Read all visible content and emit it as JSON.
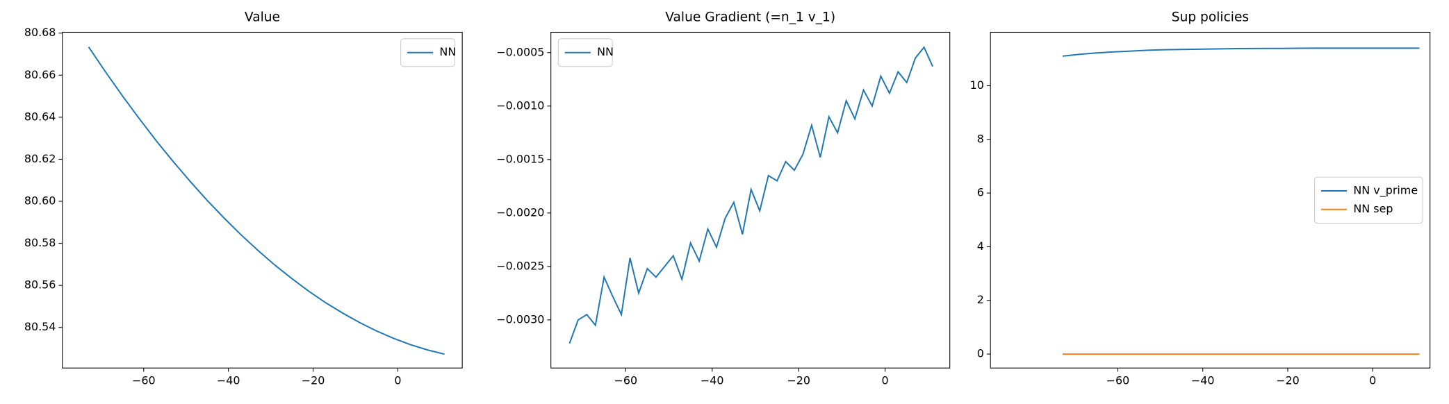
{
  "chart_data": [
    {
      "type": "line",
      "title": "Value",
      "x": [
        -73,
        -69,
        -65,
        -61,
        -57,
        -53,
        -49,
        -45,
        -41,
        -37,
        -33,
        -29,
        -25,
        -21,
        -17,
        -13,
        -9,
        -5,
        -1,
        3,
        7,
        11
      ],
      "series": [
        {
          "name": "NN",
          "color": "#1f77b4",
          "values": [
            80.6734,
            80.6615,
            80.6501,
            80.6392,
            80.6287,
            80.6188,
            80.6094,
            80.6004,
            80.592,
            80.584,
            80.5766,
            80.5696,
            80.5632,
            80.5572,
            80.5517,
            80.5468,
            80.5423,
            80.5383,
            80.5348,
            80.5318,
            80.5293,
            80.5273
          ]
        }
      ],
      "xlim": [
        -79.2,
        15.2
      ],
      "xticks": [
        {
          "value": -60,
          "label": "−60"
        },
        {
          "value": -40,
          "label": "−40"
        },
        {
          "value": -20,
          "label": "−20"
        },
        0
      ],
      "ylim": [
        80.5207,
        80.6804
      ],
      "yticks": [
        80.54,
        80.56,
        80.58,
        {
          "value": 80.6,
          "label": "80.60"
        },
        80.62,
        80.64,
        80.66,
        80.68
      ],
      "legend": "upper right"
    },
    {
      "type": "line",
      "title": "Value Gradient (=n_1 v_1)",
      "x": [
        -73,
        -71,
        -69,
        -67,
        -65,
        -63,
        -61,
        -59,
        -57,
        -55,
        -53,
        -51,
        -49,
        -47,
        -45,
        -43,
        -41,
        -39,
        -37,
        -35,
        -33,
        -31,
        -29,
        -27,
        -25,
        -23,
        -21,
        -19,
        -17,
        -15,
        -13,
        -11,
        -9,
        -7,
        -5,
        -3,
        -1,
        1,
        3,
        5,
        7,
        9,
        11
      ],
      "series": [
        {
          "name": "NN",
          "color": "#1f77b4",
          "values": [
            -0.00322,
            -0.003,
            -0.00295,
            -0.00305,
            -0.0026,
            -0.00278,
            -0.00295,
            -0.00242,
            -0.00275,
            -0.00252,
            -0.0026,
            -0.0025,
            -0.0024,
            -0.00262,
            -0.00228,
            -0.00245,
            -0.00215,
            -0.00232,
            -0.00205,
            -0.0019,
            -0.0022,
            -0.00178,
            -0.00198,
            -0.00165,
            -0.0017,
            -0.00152,
            -0.0016,
            -0.00145,
            -0.00118,
            -0.00148,
            -0.0011,
            -0.00125,
            -0.00095,
            -0.00112,
            -0.00085,
            -0.001,
            -0.00072,
            -0.00088,
            -0.00068,
            -0.00078,
            -0.00055,
            -0.00045,
            -0.00063
          ]
        }
      ],
      "xlim": [
        -77.3,
        14.96
      ],
      "xticks": [
        {
          "value": -60,
          "label": "−60"
        },
        {
          "value": -40,
          "label": "−40"
        },
        {
          "value": -20,
          "label": "−20"
        },
        0
      ],
      "ylim": [
        -0.00345,
        -0.00031
      ],
      "yticks": [
        {
          "value": -0.003,
          "label": "−0.0030"
        },
        {
          "value": -0.0025,
          "label": "−0.0025"
        },
        {
          "value": -0.002,
          "label": "−0.0020"
        },
        {
          "value": -0.0015,
          "label": "−0.0015"
        },
        {
          "value": -0.001,
          "label": "−0.0010"
        },
        {
          "value": -0.0005,
          "label": "−0.0005"
        }
      ],
      "legend": "upper left"
    },
    {
      "type": "line",
      "title": "Sup policies",
      "x": [
        -73,
        -69,
        -65,
        -61,
        -57,
        -53,
        -49,
        -45,
        -41,
        -37,
        -33,
        -29,
        -25,
        -21,
        -17,
        -13,
        -9,
        -5,
        -1,
        3,
        7,
        11
      ],
      "series": [
        {
          "name": "NN v_prime",
          "color": "#1f77b4",
          "values": [
            11.1,
            11.17,
            11.22,
            11.26,
            11.29,
            11.32,
            11.34,
            11.35,
            11.36,
            11.37,
            11.38,
            11.385,
            11.39,
            11.39,
            11.395,
            11.4,
            11.4,
            11.4,
            11.4,
            11.4,
            11.4,
            11.4
          ]
        },
        {
          "name": "NN sep",
          "color": "#ff7f0e",
          "values": [
            0,
            0,
            0,
            0,
            0,
            0,
            0,
            0,
            0,
            0,
            0,
            0,
            0,
            0,
            0,
            0,
            0,
            0,
            0,
            0,
            0,
            0
          ]
        }
      ],
      "xlim": [
        -90,
        13.5
      ],
      "xticks": [
        {
          "value": -60,
          "label": "−60"
        },
        {
          "value": -40,
          "label": "−40"
        },
        {
          "value": -20,
          "label": "−20"
        },
        0
      ],
      "ylim": [
        -0.52,
        11.99
      ],
      "yticks": [
        0,
        2,
        4,
        6,
        8,
        10
      ],
      "legend": "center right"
    }
  ]
}
